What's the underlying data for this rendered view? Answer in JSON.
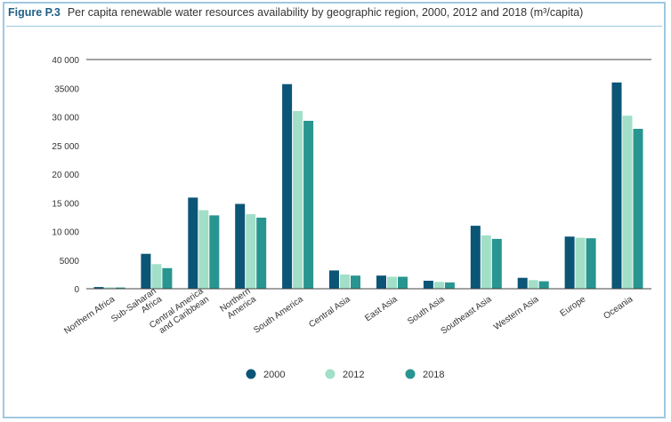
{
  "figure": {
    "label": "Figure P.3",
    "title": "Per capita renewable water resources availability by geographic region, 2000, 2012 and 2018 (m³/capita)"
  },
  "chart_data": {
    "type": "bar",
    "categories": [
      "Northern Africa",
      "Sub-Saharan Africa",
      "Central America and Caribbean",
      "Northern America",
      "South America",
      "Central Asia",
      "East Asia",
      "South Asia",
      "Southeast Asia",
      "Western Asia",
      "Europe",
      "Oceania"
    ],
    "category_lines": [
      [
        "Northern Africa"
      ],
      [
        "Sub-Saharan",
        "Africa"
      ],
      [
        "Central America",
        "and Caribbean"
      ],
      [
        "Northern",
        "America"
      ],
      [
        "South America"
      ],
      [
        "Central Asia"
      ],
      [
        "East Asia"
      ],
      [
        "South Asia"
      ],
      [
        "Southeast Asia"
      ],
      [
        "Western Asia"
      ],
      [
        "Europe"
      ],
      [
        "Oceania"
      ]
    ],
    "series": [
      {
        "name": "2000",
        "color": "#0b5576",
        "values": [
          300,
          6100,
          15900,
          14800,
          35700,
          3200,
          2300,
          1400,
          11000,
          1900,
          9100,
          36000
        ]
      },
      {
        "name": "2012",
        "color": "#a2dfc8",
        "values": [
          250,
          4300,
          13700,
          13000,
          31000,
          2500,
          2100,
          1200,
          9300,
          1500,
          8900,
          30200
        ]
      },
      {
        "name": "2018",
        "color": "#289590",
        "values": [
          220,
          3600,
          12800,
          12400,
          29300,
          2300,
          2100,
          1100,
          8700,
          1300,
          8800,
          27900
        ]
      }
    ],
    "ylim": [
      0,
      40000
    ],
    "yticks": [
      "0",
      "5000",
      "10 000",
      "15 000",
      "20 000",
      "25 000",
      "30 000",
      "35000",
      "40 000"
    ],
    "ytick_values": [
      0,
      5000,
      10000,
      15000,
      20000,
      25000,
      30000,
      35000,
      40000
    ],
    "legend_position": "bottom"
  }
}
